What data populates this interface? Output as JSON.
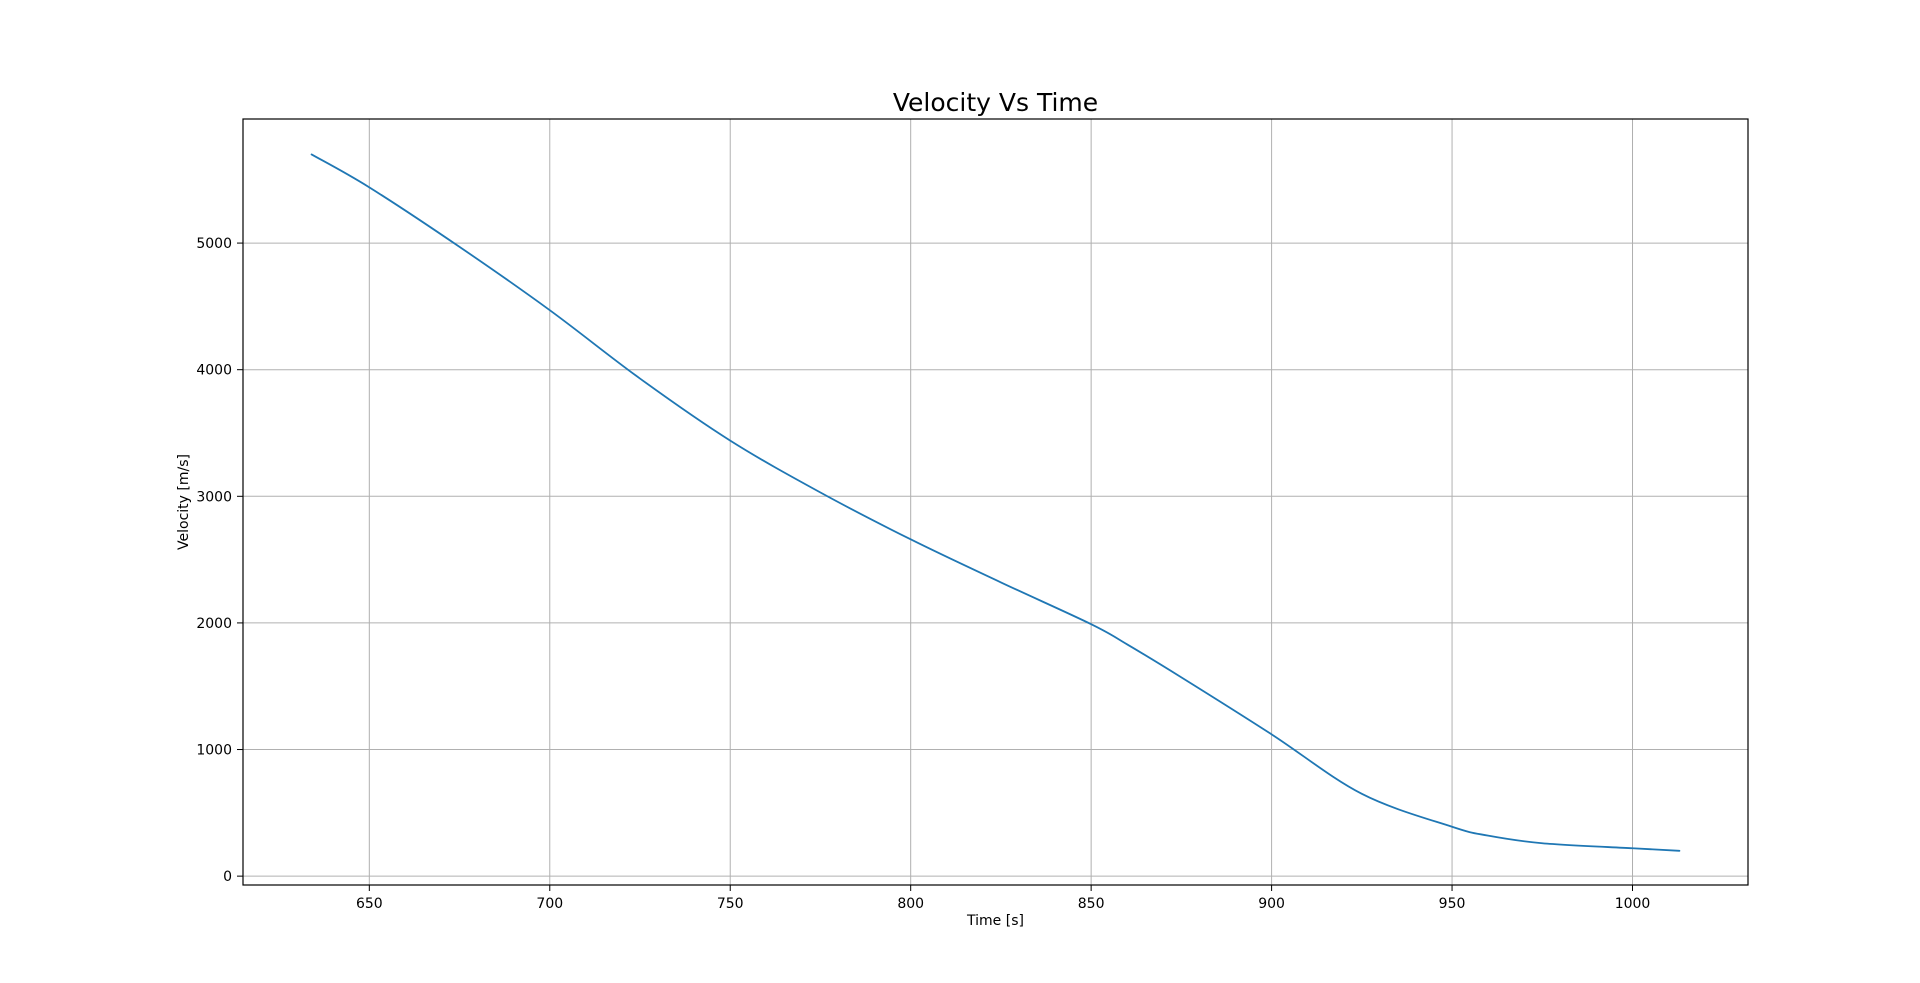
{
  "chart_data": {
    "type": "line",
    "title": "Velocity Vs Time",
    "xlabel": "Time [s]",
    "ylabel": "Velocity [m/s]",
    "xlim": [
      615,
      1032
    ],
    "ylim": [
      -70,
      5980
    ],
    "xticks": [
      650,
      700,
      750,
      800,
      850,
      900,
      950,
      1000
    ],
    "xtick_labels": [
      "650",
      "700",
      "750",
      "800",
      "850",
      "900",
      "950",
      "1000"
    ],
    "yticks": [
      0,
      1000,
      2000,
      3000,
      4000,
      5000
    ],
    "ytick_labels": [
      "0",
      "1000",
      "2000",
      "3000",
      "4000",
      "5000"
    ],
    "grid": true,
    "legend": "none",
    "series": [
      {
        "color": "#1f77b4",
        "x": [
          634,
          650,
          675,
          700,
          725,
          750,
          775,
          800,
          825,
          850,
          860,
          875,
          900,
          925,
          950,
          960,
          975,
          1000,
          1013
        ],
        "y": [
          5700,
          5440,
          4970,
          4470,
          3930,
          3440,
          3030,
          2660,
          2320,
          1990,
          1830,
          1570,
          1120,
          650,
          390,
          320,
          260,
          220,
          200
        ]
      }
    ]
  }
}
